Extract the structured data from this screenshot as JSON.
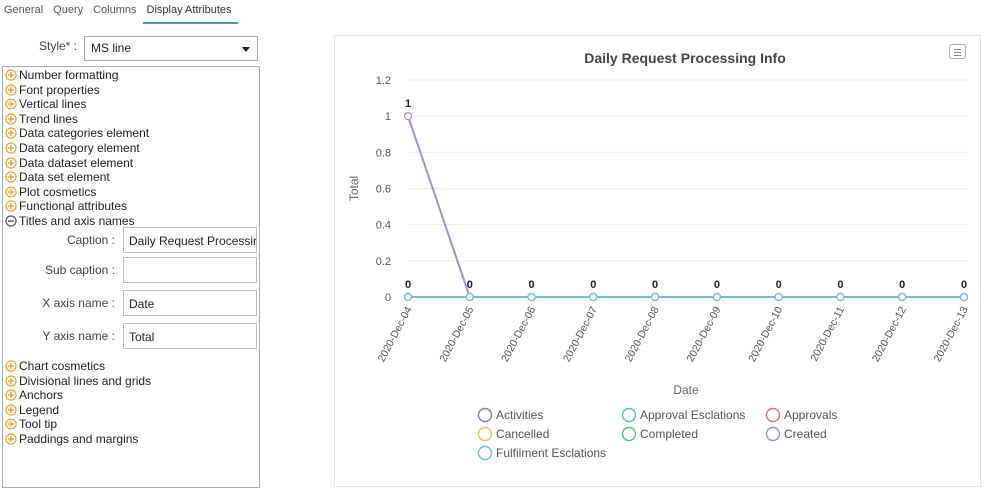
{
  "tabs": [
    {
      "label": "General",
      "active": false
    },
    {
      "label": "Query",
      "active": false
    },
    {
      "label": "Columns",
      "active": false
    },
    {
      "label": "Display Attributes",
      "active": true
    }
  ],
  "style": {
    "label": "Style* :",
    "value": "MS line"
  },
  "tree_top": [
    {
      "label": "Number formatting",
      "expanded": false
    },
    {
      "label": "Font properties",
      "expanded": false
    },
    {
      "label": "Vertical lines",
      "expanded": false
    },
    {
      "label": "Trend lines",
      "expanded": false
    },
    {
      "label": "Data categories element",
      "expanded": false
    },
    {
      "label": "Data category element",
      "expanded": false
    },
    {
      "label": "Data dataset element",
      "expanded": false
    },
    {
      "label": "Data set element",
      "expanded": false
    },
    {
      "label": "Plot cosmetics",
      "expanded": false
    },
    {
      "label": "Functional attributes",
      "expanded": false
    },
    {
      "label": "Titles and axis names",
      "expanded": true
    }
  ],
  "titles_fields": [
    {
      "label": "Caption :",
      "value": "Daily Request Processir"
    },
    {
      "label": "Sub caption :",
      "value": ""
    },
    {
      "label": "X axis name :",
      "value": "Date"
    },
    {
      "label": "Y axis name :",
      "value": "Total"
    }
  ],
  "tree_bottom": [
    {
      "label": "Chart cosmetics",
      "expanded": false
    },
    {
      "label": "Divisional lines and grids",
      "expanded": false
    },
    {
      "label": "Anchors",
      "expanded": false
    },
    {
      "label": "Legend",
      "expanded": false
    },
    {
      "label": "Tool tip",
      "expanded": false
    },
    {
      "label": "Paddings and margins",
      "expanded": false
    }
  ],
  "colors": {
    "accent": "#3aa0c9",
    "tree_icon": "#f0a030"
  },
  "chart_data": {
    "type": "line",
    "title": "Daily Request Processing Info",
    "xlabel": "Date",
    "ylabel": "Total",
    "ylim": [
      0,
      1.2
    ],
    "yticks": [
      "0",
      "0.2",
      "0.4",
      "0.6",
      "0.8",
      "1",
      "1.2"
    ],
    "categories": [
      "2020-Dec-04",
      "2020-Dec-05",
      "2020-Dec-06",
      "2020-Dec-07",
      "2020-Dec-08",
      "2020-Dec-09",
      "2020-Dec-10",
      "2020-Dec-11",
      "2020-Dec-12",
      "2020-Dec-13"
    ],
    "value_labels": [
      "1",
      "0",
      "0",
      "0",
      "0",
      "0",
      "0",
      "0",
      "0",
      "0"
    ],
    "zero_labels": [
      "0"
    ],
    "series": [
      {
        "name": "Activities",
        "color": "#7a7ac8",
        "values": [
          0,
          0,
          0,
          0,
          0,
          0,
          0,
          0,
          0,
          0
        ]
      },
      {
        "name": "Approval Esclations",
        "color": "#4cc3c3",
        "values": [
          0,
          0,
          0,
          0,
          0,
          0,
          0,
          0,
          0,
          0
        ]
      },
      {
        "name": "Approvals",
        "color": "#e06c6c",
        "values": [
          0,
          0,
          0,
          0,
          0,
          0,
          0,
          0,
          0,
          0
        ]
      },
      {
        "name": "Cancelled",
        "color": "#e8c64a",
        "values": [
          0,
          0,
          0,
          0,
          0,
          0,
          0,
          0,
          0,
          0
        ]
      },
      {
        "name": "Completed",
        "color": "#5fb88a",
        "values": [
          0,
          0,
          0,
          0,
          0,
          0,
          0,
          0,
          0,
          0
        ]
      },
      {
        "name": "Created",
        "color": "#a98ad4",
        "values": [
          1,
          0,
          0,
          0,
          0,
          0,
          0,
          0,
          0,
          0
        ]
      },
      {
        "name": "Fulfilment Esclations",
        "color": "#6cbfe0",
        "values": [
          0,
          0,
          0,
          0,
          0,
          0,
          0,
          0,
          0,
          0
        ]
      }
    ]
  }
}
